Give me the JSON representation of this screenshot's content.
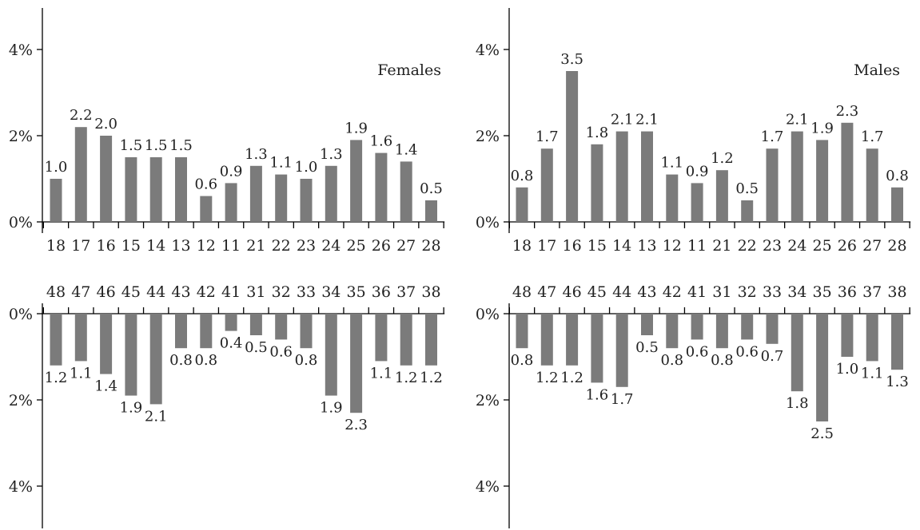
{
  "chart_data": [
    {
      "type": "bar",
      "title": "Females",
      "categories": [
        "18",
        "17",
        "16",
        "15",
        "14",
        "13",
        "12",
        "11",
        "21",
        "22",
        "23",
        "24",
        "25",
        "26",
        "27",
        "28"
      ],
      "values": [
        1.0,
        2.2,
        2.0,
        1.5,
        1.5,
        1.5,
        0.6,
        0.9,
        1.3,
        1.1,
        1.0,
        1.3,
        1.9,
        1.6,
        1.4,
        0.5
      ],
      "value_labels": [
        "1.0",
        "2.2",
        "2.0",
        "1.5",
        "1.5",
        "1.5",
        "0.6",
        "0.9",
        "1.3",
        "1.1",
        "1.0",
        "1.3",
        "1.9",
        "1.6",
        "1.4",
        "0.5"
      ],
      "yticks": [
        "0%",
        "2%",
        "4%"
      ],
      "ylim": [
        0,
        4.3
      ],
      "direction": "up",
      "bar_color": "#7b7b7b"
    },
    {
      "type": "bar",
      "title": "Males",
      "categories": [
        "18",
        "17",
        "16",
        "15",
        "14",
        "13",
        "12",
        "11",
        "21",
        "22",
        "23",
        "24",
        "25",
        "26",
        "27",
        "28"
      ],
      "values": [
        0.8,
        1.7,
        3.5,
        1.8,
        2.1,
        2.1,
        1.1,
        0.9,
        1.2,
        0.5,
        1.7,
        2.1,
        1.9,
        2.3,
        1.7,
        0.8
      ],
      "value_labels": [
        "0.8",
        "1.7",
        "3.5",
        "1.8",
        "2.1",
        "2.1",
        "1.1",
        "0.9",
        "1.2",
        "0.5",
        "1.7",
        "2.1",
        "1.9",
        "2.3",
        "1.7",
        "0.8"
      ],
      "yticks": [
        "0%",
        "2%",
        "4%"
      ],
      "ylim": [
        0,
        4.3
      ],
      "direction": "up",
      "bar_color": "#7b7b7b"
    },
    {
      "type": "bar",
      "title": "",
      "categories": [
        "48",
        "47",
        "46",
        "45",
        "44",
        "43",
        "42",
        "41",
        "31",
        "32",
        "33",
        "34",
        "35",
        "36",
        "37",
        "38"
      ],
      "values": [
        1.2,
        1.1,
        1.4,
        1.9,
        2.1,
        0.8,
        0.8,
        0.4,
        0.5,
        0.6,
        0.8,
        1.9,
        2.3,
        1.1,
        1.2,
        1.2
      ],
      "value_labels": [
        "1.2",
        "1.1",
        "1.4",
        "1.9",
        "2.1",
        "0.8",
        "0.8",
        "0.4",
        "0.5",
        "0.6",
        "0.8",
        "1.9",
        "2.3",
        "1.1",
        "1.2",
        "1.2"
      ],
      "yticks": [
        "0%",
        "2%",
        "4%"
      ],
      "ylim": [
        0,
        4.9
      ],
      "direction": "down",
      "bar_color": "#7b7b7b"
    },
    {
      "type": "bar",
      "title": "",
      "categories": [
        "48",
        "47",
        "46",
        "45",
        "44",
        "43",
        "42",
        "41",
        "31",
        "32",
        "33",
        "34",
        "35",
        "36",
        "37",
        "38"
      ],
      "values": [
        0.8,
        1.2,
        1.2,
        1.6,
        1.7,
        0.5,
        0.8,
        0.6,
        0.8,
        0.6,
        0.7,
        1.8,
        2.5,
        1.0,
        1.1,
        1.3
      ],
      "value_labels": [
        "0.8",
        "1.2",
        "1.2",
        "1.6",
        "1.7",
        "0.5",
        "0.8",
        "0.6",
        "0.8",
        "0.6",
        "0.7",
        "1.8",
        "2.5",
        "1.0",
        "1.1",
        "1.3"
      ],
      "yticks": [
        "0%",
        "2%",
        "4%"
      ],
      "ylim": [
        0,
        4.9
      ],
      "direction": "down",
      "bar_color": "#7b7b7b"
    }
  ]
}
